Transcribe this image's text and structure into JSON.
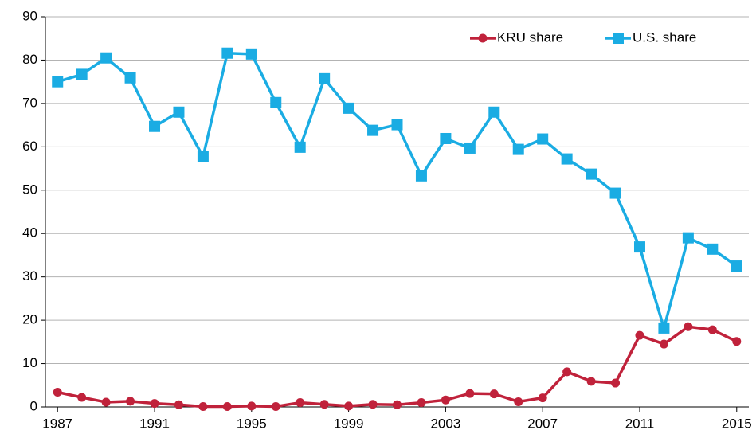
{
  "chart_data": {
    "type": "line",
    "x": [
      1987,
      1988,
      1989,
      1990,
      1991,
      1992,
      1993,
      1994,
      1995,
      1996,
      1997,
      1998,
      1999,
      2000,
      2001,
      2002,
      2003,
      2004,
      2005,
      2006,
      2007,
      2008,
      2009,
      2010,
      2011,
      2012,
      2013,
      2014,
      2015
    ],
    "series": [
      {
        "name": "KRU share",
        "color": "#c0223b",
        "marker": "circle",
        "values": [
          3.4,
          2.2,
          1.1,
          1.3,
          0.8,
          0.5,
          0.1,
          0.1,
          0.2,
          0.1,
          1.0,
          0.6,
          0.2,
          0.6,
          0.5,
          1.0,
          1.6,
          3.1,
          3.0,
          1.2,
          2.1,
          8.1,
          5.9,
          5.5,
          16.5,
          14.5,
          18.5,
          17.8,
          15.1
        ]
      },
      {
        "name": "U.S. share",
        "color": "#1aace3",
        "marker": "square",
        "values": [
          75.0,
          76.7,
          80.5,
          75.9,
          64.7,
          68.0,
          57.7,
          81.6,
          81.4,
          70.2,
          59.9,
          75.7,
          68.9,
          63.8,
          65.1,
          53.3,
          61.9,
          59.7,
          68.0,
          59.4,
          61.8,
          57.2,
          53.7,
          49.3,
          36.9,
          18.2,
          39.0,
          36.4,
          32.5
        ]
      }
    ],
    "xlim": [
      1986.5,
      2015.5
    ],
    "xticks": [
      1987,
      1991,
      1995,
      1999,
      2003,
      2007,
      2011,
      2015
    ],
    "ylim": [
      0,
      90
    ],
    "yticks": [
      0,
      10,
      20,
      30,
      40,
      50,
      60,
      70,
      80,
      90
    ],
    "grid": true,
    "legend": "top-right"
  }
}
